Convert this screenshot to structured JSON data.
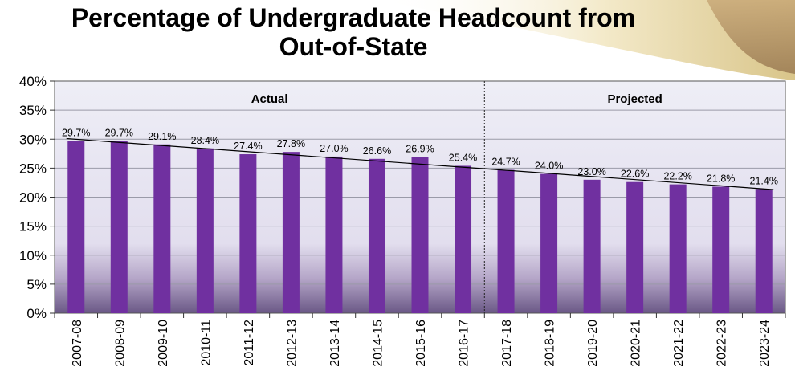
{
  "title": {
    "line1": "Percentage of Undergraduate Headcount from",
    "line2": "Out-of-State"
  },
  "chart_data": {
    "type": "bar",
    "categories": [
      "2007-08",
      "2008-09",
      "2009-10",
      "2010-11",
      "2011-12",
      "2012-13",
      "2013-14",
      "2014-15",
      "2015-16",
      "2016-17",
      "2017-18",
      "2018-19",
      "2019-20",
      "2020-21",
      "2021-22",
      "2022-23",
      "2023-24"
    ],
    "values": [
      29.7,
      29.7,
      29.1,
      28.4,
      27.4,
      27.8,
      27.0,
      26.6,
      26.9,
      25.4,
      24.7,
      24.0,
      23.0,
      22.6,
      22.2,
      21.8,
      21.4
    ],
    "data_labels": [
      "29.7%",
      "29.7%",
      "29.1%",
      "28.4%",
      "27.4%",
      "27.8%",
      "27.0%",
      "26.6%",
      "26.9%",
      "25.4%",
      "24.7%",
      "24.0%",
      "23.0%",
      "22.6%",
      "22.2%",
      "21.8%",
      "21.4%"
    ],
    "yticks": [
      "0%",
      "5%",
      "10%",
      "15%",
      "20%",
      "25%",
      "30%",
      "35%",
      "40%"
    ],
    "ylim": [
      0,
      40
    ],
    "trendline": {
      "start": 30.1,
      "end": 21.3
    },
    "regions": [
      {
        "label": "Actual",
        "from_index": 0,
        "to_index": 9
      },
      {
        "label": "Projected",
        "from_index": 10,
        "to_index": 16
      }
    ],
    "grid": true,
    "colors": {
      "bar": "#7030a0",
      "trend": "#000000",
      "accent_swoosh": "#e8d9a6"
    }
  }
}
